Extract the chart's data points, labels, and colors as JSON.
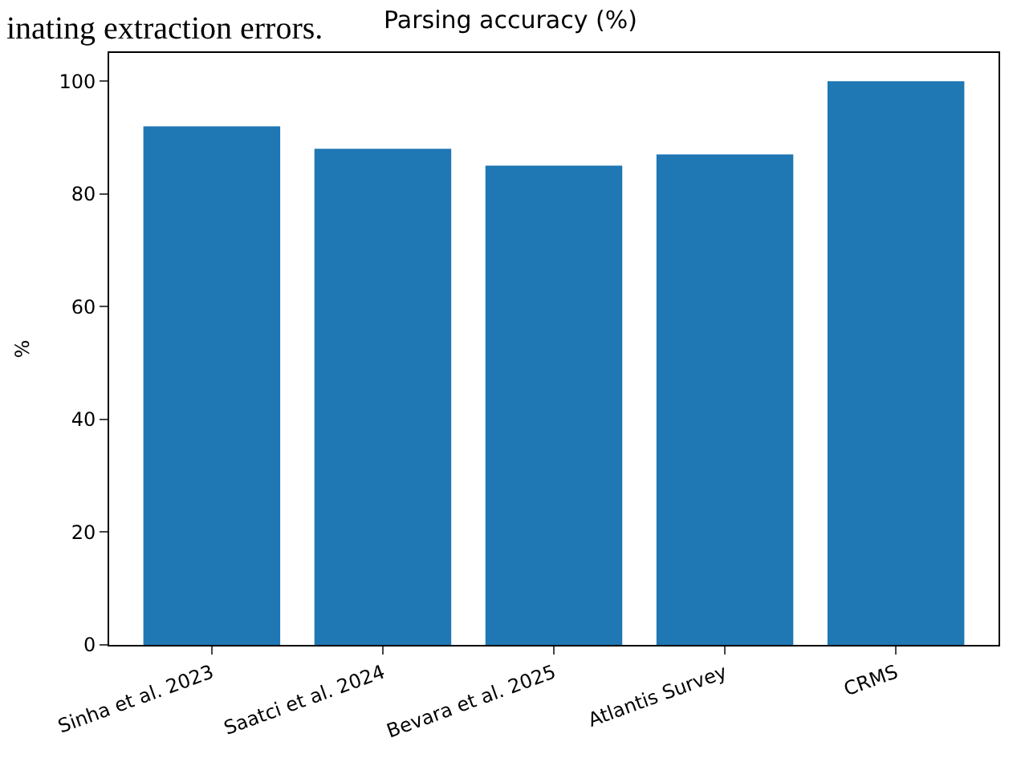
{
  "chart_data": {
    "type": "bar",
    "title": "Parsing accuracy (%)",
    "ylabel": "%",
    "categories": [
      "Sinha et al. 2023",
      "Saatci et al. 2024",
      "Bevara et al. 2025",
      "Atlantis Survey",
      "CRMS"
    ],
    "values": [
      92,
      88,
      85,
      87,
      100
    ],
    "color": "#1f77b4",
    "ylim": [
      0,
      105
    ],
    "yticks": [
      0,
      20,
      40,
      60,
      80,
      100
    ],
    "annotations": [
      "inating extraction errors."
    ]
  }
}
